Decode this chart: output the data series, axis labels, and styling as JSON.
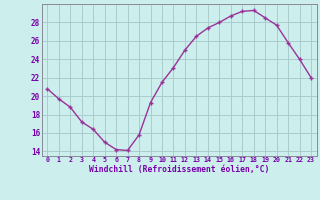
{
  "x": [
    0,
    1,
    2,
    3,
    4,
    5,
    6,
    7,
    8,
    9,
    10,
    11,
    12,
    13,
    14,
    15,
    16,
    17,
    18,
    19,
    20,
    21,
    22,
    23
  ],
  "y": [
    20.8,
    19.7,
    18.8,
    17.2,
    16.4,
    15.0,
    14.2,
    14.1,
    15.8,
    19.3,
    21.5,
    23.1,
    25.0,
    26.5,
    27.4,
    28.0,
    28.7,
    29.2,
    29.3,
    28.5,
    27.7,
    25.8,
    24.0,
    22.0
  ],
  "line_color": "#993399",
  "marker": "P",
  "marker_size": 2.5,
  "line_width": 1.0,
  "bg_color": "#cceeed",
  "grid_color": "#aacccc",
  "xlabel": "Windchill (Refroidissement éolien,°C)",
  "xlabel_color": "#7700aa",
  "tick_color": "#7700aa",
  "ylim": [
    13.5,
    30.0
  ],
  "yticks": [
    14,
    16,
    18,
    20,
    22,
    24,
    26,
    28
  ],
  "xticks": [
    0,
    1,
    2,
    3,
    4,
    5,
    6,
    7,
    8,
    9,
    10,
    11,
    12,
    13,
    14,
    15,
    16,
    17,
    18,
    19,
    20,
    21,
    22,
    23
  ]
}
